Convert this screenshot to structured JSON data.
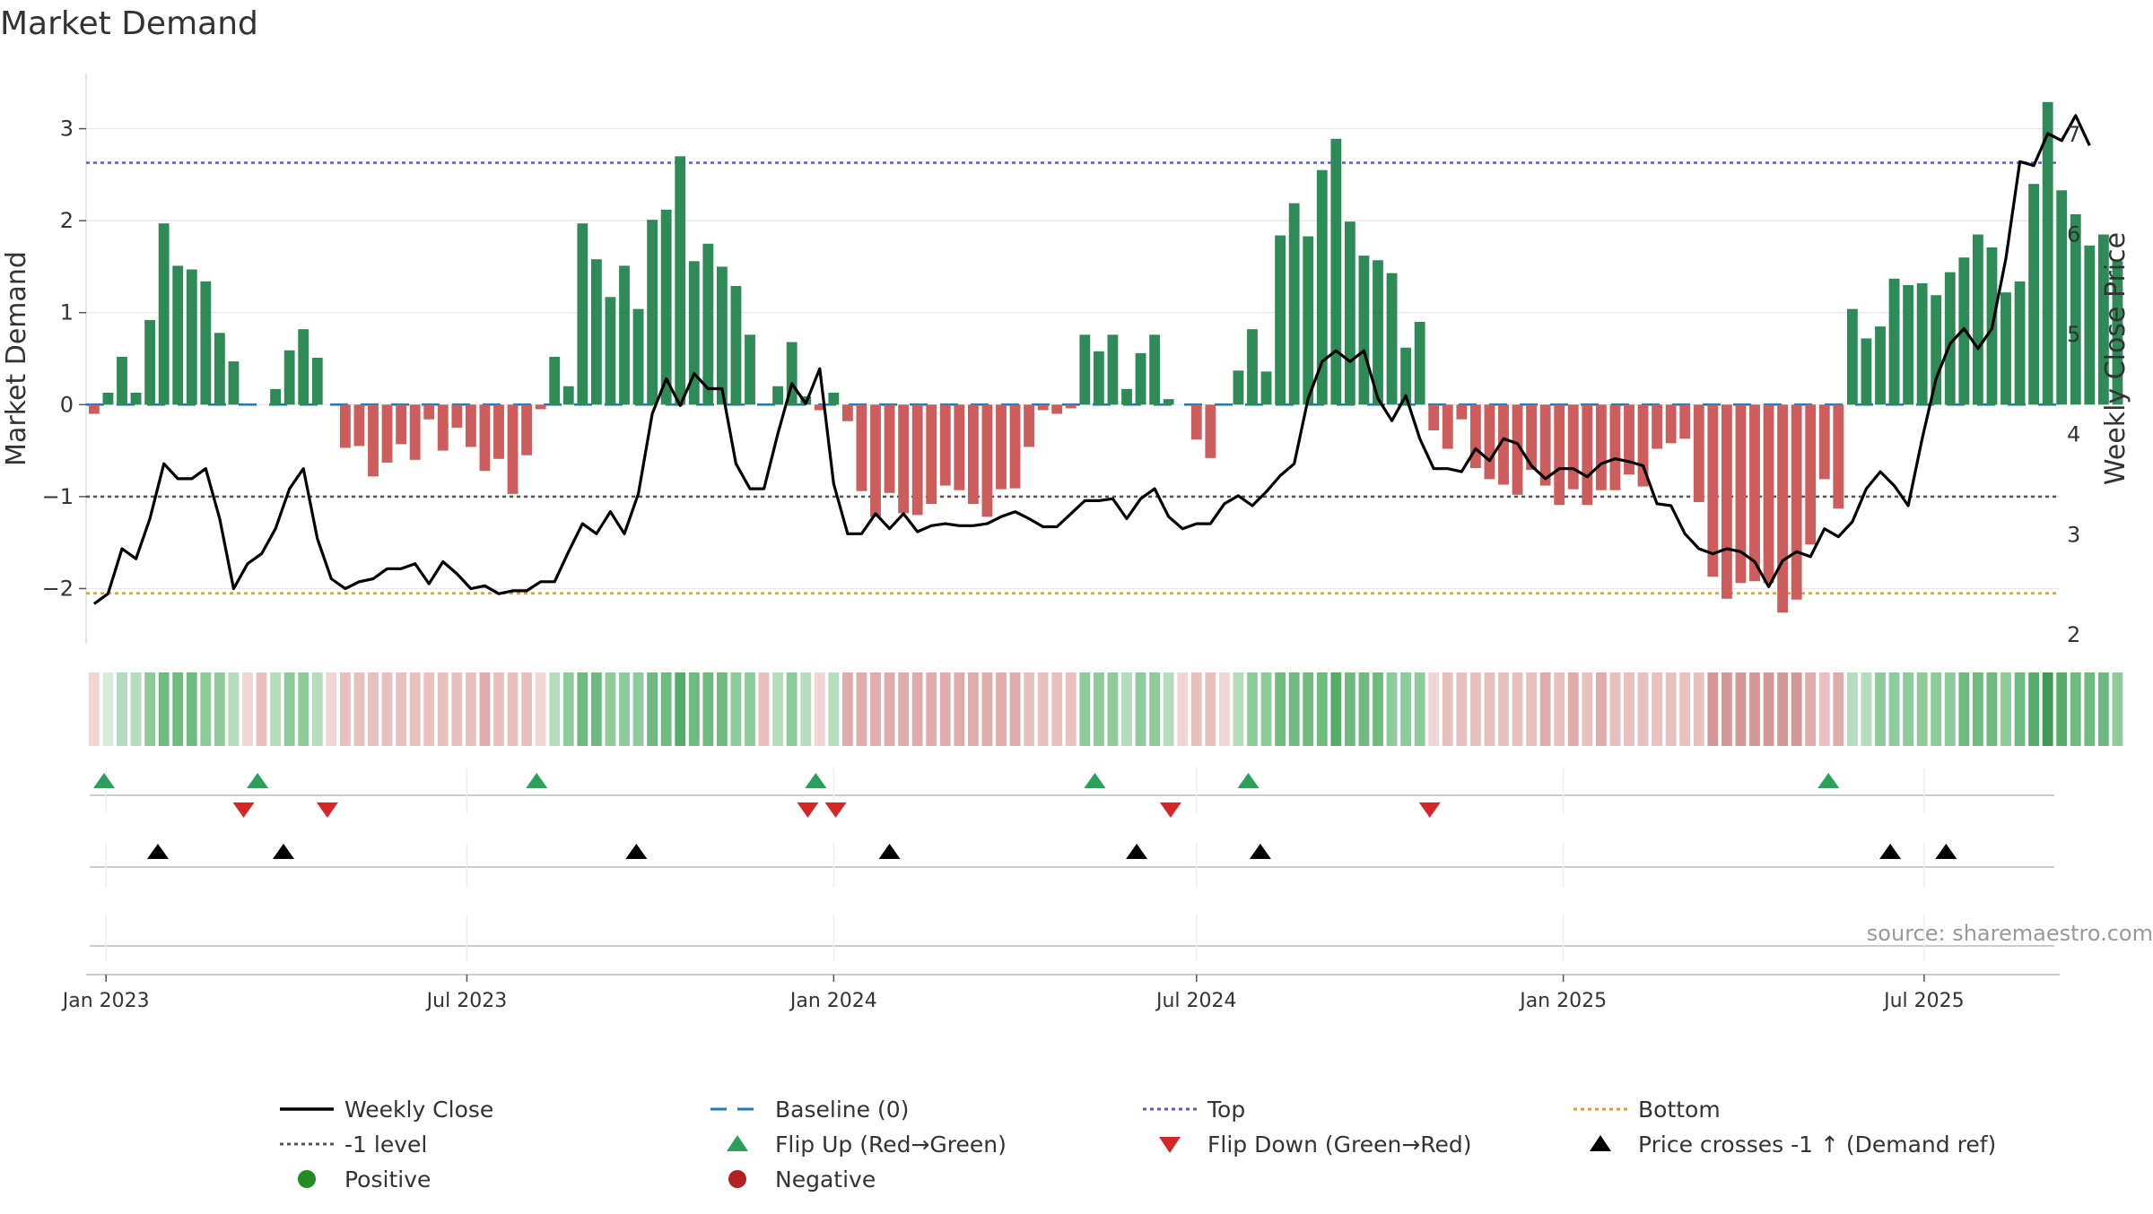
{
  "chart_data": {
    "type": "bar",
    "title": "Market Demand",
    "ylabel_left": "Market Demand",
    "ylabel_right": "Weekly Close Price",
    "source": "source: sharemaestro.com",
    "ylim_left": [
      -2.6,
      3.6
    ],
    "ylim_right": [
      1.9,
      7.6
    ],
    "yticks_left": [
      -2,
      -1,
      0,
      1,
      2,
      3
    ],
    "ytick_labels_left": [
      "−2",
      "−1",
      "0",
      "1",
      "2",
      "3"
    ],
    "yticks_right": [
      2,
      3,
      4,
      5,
      6,
      7
    ],
    "ytick_labels_right": [
      "2",
      "3",
      "4",
      "5",
      "6",
      "7"
    ],
    "x_range": [
      "2022-12-22",
      "2025-09-07"
    ],
    "x_start_date": "2022-12-26",
    "x_step_days": 7,
    "x_ticks": [
      {
        "date": "2023-01-01",
        "label": "Jan 2023"
      },
      {
        "date": "2023-07-01",
        "label": "Jul 2023"
      },
      {
        "date": "2024-01-01",
        "label": "Jan 2024"
      },
      {
        "date": "2024-07-01",
        "label": "Jul 2024"
      },
      {
        "date": "2025-01-01",
        "label": "Jan 2025"
      },
      {
        "date": "2025-07-01",
        "label": "Jul 2025"
      }
    ],
    "reference_lines": {
      "baseline": 0,
      "minus_one": -1,
      "top": 2.63,
      "bottom": -2.05
    },
    "demand": [
      -0.1,
      0.13,
      0.52,
      0.13,
      0.92,
      1.97,
      1.51,
      1.47,
      1.34,
      0.78,
      0.47,
      0,
      0,
      0.17,
      0.59,
      0.82,
      0.51,
      0,
      -0.47,
      -0.45,
      -0.78,
      -0.63,
      -0.43,
      -0.6,
      -0.16,
      -0.5,
      -0.25,
      -0.46,
      -0.72,
      -0.59,
      -0.97,
      -0.55,
      -0.05,
      0.52,
      0.2,
      1.97,
      1.58,
      1.17,
      1.51,
      1.04,
      2.01,
      2.12,
      2.7,
      1.56,
      1.75,
      1.5,
      1.29,
      0.76,
      0,
      0.2,
      0.68,
      0.09,
      -0.06,
      0.13,
      -0.18,
      -0.94,
      -1.22,
      -0.96,
      -1.18,
      -1.2,
      -1.08,
      -0.88,
      -0.93,
      -1.08,
      -1.22,
      -0.92,
      -0.91,
      -0.46,
      -0.06,
      -0.1,
      -0.04,
      0.76,
      0.58,
      0.76,
      0.17,
      0.56,
      0.76,
      0.06,
      0,
      -0.38,
      -0.58,
      0,
      0.37,
      0.82,
      0.36,
      1.84,
      2.19,
      1.83,
      2.55,
      2.89,
      1.99,
      1.62,
      1.57,
      1.43,
      0.62,
      0.9,
      -0.28,
      -0.48,
      -0.16,
      -0.69,
      -0.81,
      -0.87,
      -0.98,
      -0.71,
      -0.88,
      -1.09,
      -0.92,
      -1.09,
      -0.93,
      -0.93,
      -0.76,
      -0.89,
      -0.48,
      -0.42,
      -0.37,
      -1.06,
      -1.87,
      -2.11,
      -1.94,
      -1.92,
      -1.94,
      -2.26,
      -2.12,
      -1.52,
      -0.81,
      -1.13,
      1.04,
      0.72,
      0.85,
      1.37,
      1.3,
      1.32,
      1.19,
      1.44,
      1.6,
      1.85,
      1.71,
      1.22,
      1.34,
      2.4,
      3.29,
      2.33,
      2.07,
      1.73,
      1.85,
      1.56
    ],
    "weekly_close": [
      2.3,
      2.4,
      2.85,
      2.75,
      3.15,
      3.7,
      3.55,
      3.55,
      3.65,
      3.15,
      2.45,
      2.7,
      2.8,
      3.05,
      3.45,
      3.65,
      2.95,
      2.55,
      2.45,
      2.52,
      2.55,
      2.65,
      2.65,
      2.7,
      2.5,
      2.72,
      2.6,
      2.45,
      2.48,
      2.4,
      2.43,
      2.43,
      2.52,
      2.52,
      2.82,
      3.1,
      3.0,
      3.22,
      3.0,
      3.4,
      4.2,
      4.55,
      4.28,
      4.6,
      4.45,
      4.45,
      3.7,
      3.45,
      3.45,
      4.0,
      4.5,
      4.3,
      4.65,
      3.5,
      3.0,
      3.0,
      3.2,
      3.05,
      3.2,
      3.02,
      3.08,
      3.1,
      3.08,
      3.08,
      3.1,
      3.17,
      3.22,
      3.15,
      3.07,
      3.07,
      3.2,
      3.33,
      3.33,
      3.35,
      3.15,
      3.35,
      3.45,
      3.17,
      3.05,
      3.1,
      3.1,
      3.3,
      3.38,
      3.28,
      3.42,
      3.58,
      3.7,
      4.35,
      4.72,
      4.83,
      4.72,
      4.83,
      4.35,
      4.13,
      4.38,
      3.95,
      3.65,
      3.65,
      3.62,
      3.85,
      3.73,
      3.95,
      3.9,
      3.68,
      3.55,
      3.65,
      3.65,
      3.57,
      3.7,
      3.75,
      3.72,
      3.68,
      3.3,
      3.28,
      3.0,
      2.85,
      2.8,
      2.85,
      2.82,
      2.72,
      2.47,
      2.73,
      2.82,
      2.77,
      3.05,
      2.97,
      3.12,
      3.45,
      3.62,
      3.48,
      3.28,
      3.95,
      4.55,
      4.9,
      5.05,
      4.85,
      5.05,
      5.75,
      6.72,
      6.68,
      7.0,
      6.93,
      7.18,
      6.88
    ],
    "heatmap_levels": [
      1,
      1,
      2,
      2,
      3,
      4,
      4,
      4,
      3,
      3,
      2,
      1,
      2,
      2,
      3,
      3,
      2,
      1,
      2,
      2,
      2,
      2,
      2,
      2,
      2,
      2,
      2,
      2,
      3,
      2,
      2,
      2,
      1,
      2,
      3,
      4,
      4,
      3,
      3,
      3,
      4,
      4,
      5,
      4,
      4,
      4,
      3,
      3,
      2,
      2,
      3,
      2,
      1,
      2,
      3,
      3,
      3,
      3,
      3,
      3,
      3,
      3,
      3,
      3,
      3,
      3,
      3,
      2,
      2,
      2,
      2,
      3,
      3,
      3,
      2,
      3,
      3,
      2,
      1,
      2,
      2,
      1,
      2,
      3,
      3,
      4,
      4,
      4,
      4,
      5,
      4,
      4,
      4,
      3,
      3,
      3,
      1,
      2,
      2,
      2,
      2,
      2,
      2,
      2,
      3,
      2,
      3,
      2,
      3,
      2,
      2,
      2,
      2,
      2,
      2,
      2,
      4,
      4,
      4,
      4,
      4,
      4,
      4,
      3,
      2,
      3,
      2,
      2,
      3,
      3,
      3,
      3,
      3,
      3,
      4,
      4,
      4,
      3,
      4,
      5,
      6,
      5,
      4,
      4,
      4,
      3
    ],
    "heatmap_colors": {
      "green": [
        "#d6ecdb",
        "#b4dcbd",
        "#8ecb9a",
        "#6fbb7f",
        "#55ad69",
        "#3a9952"
      ],
      "red": [
        "#f1d5d5",
        "#e8c0c0",
        "#dfabab",
        "#d59898",
        "#cc8787",
        "#c27575"
      ]
    },
    "flip_up_dates": [
      "2022-12-31",
      "2023-03-18",
      "2023-08-05",
      "2023-12-23",
      "2024-05-11",
      "2024-07-27",
      "2025-05-14"
    ],
    "flip_down_dates": [
      "2023-03-11",
      "2023-04-22",
      "2023-12-19",
      "2024-01-02",
      "2024-06-18",
      "2024-10-26"
    ],
    "price_cross_dates": [
      "2023-01-27",
      "2023-03-31",
      "2023-09-24",
      "2024-01-29",
      "2024-06-01",
      "2024-08-02",
      "2025-06-14",
      "2025-07-12"
    ],
    "legend": [
      {
        "label": "Weekly Close",
        "kind": "solid-line",
        "color": "#000000"
      },
      {
        "label": "Baseline (0)",
        "kind": "dash-line",
        "color": "#1f77b4"
      },
      {
        "label": "Top",
        "kind": "dot-line",
        "color": "#5a5ad6"
      },
      {
        "label": "Bottom",
        "kind": "dot-line",
        "color": "#e09a2a"
      },
      {
        "label": "-1 level",
        "kind": "dot-line",
        "color": "#555555"
      },
      {
        "label": "Flip Up (Red→Green)",
        "kind": "triangle-up",
        "color": "#2ca05a"
      },
      {
        "label": "Flip Down (Green→Red)",
        "kind": "triangle-down",
        "color": "#d62728"
      },
      {
        "label": "Price crosses -1 ↑ (Demand ref)",
        "kind": "triangle-up",
        "color": "#000000"
      },
      {
        "label": "Positive",
        "kind": "circle",
        "color": "#228b22"
      },
      {
        "label": "Negative",
        "kind": "circle",
        "color": "#b22222"
      }
    ],
    "colors": {
      "positive_bar": "#2e8b57",
      "negative_bar": "#cd5c5c",
      "price_line": "#000000",
      "baseline": "#1f77b4",
      "top": "#5a5ad6",
      "bottom": "#e09a2a",
      "minus_one": "#555555",
      "flip_up": "#2ca05a",
      "flip_down": "#d62728",
      "price_cross": "#000000",
      "grid": "#e6e6e6",
      "source_text": "#999999"
    }
  }
}
